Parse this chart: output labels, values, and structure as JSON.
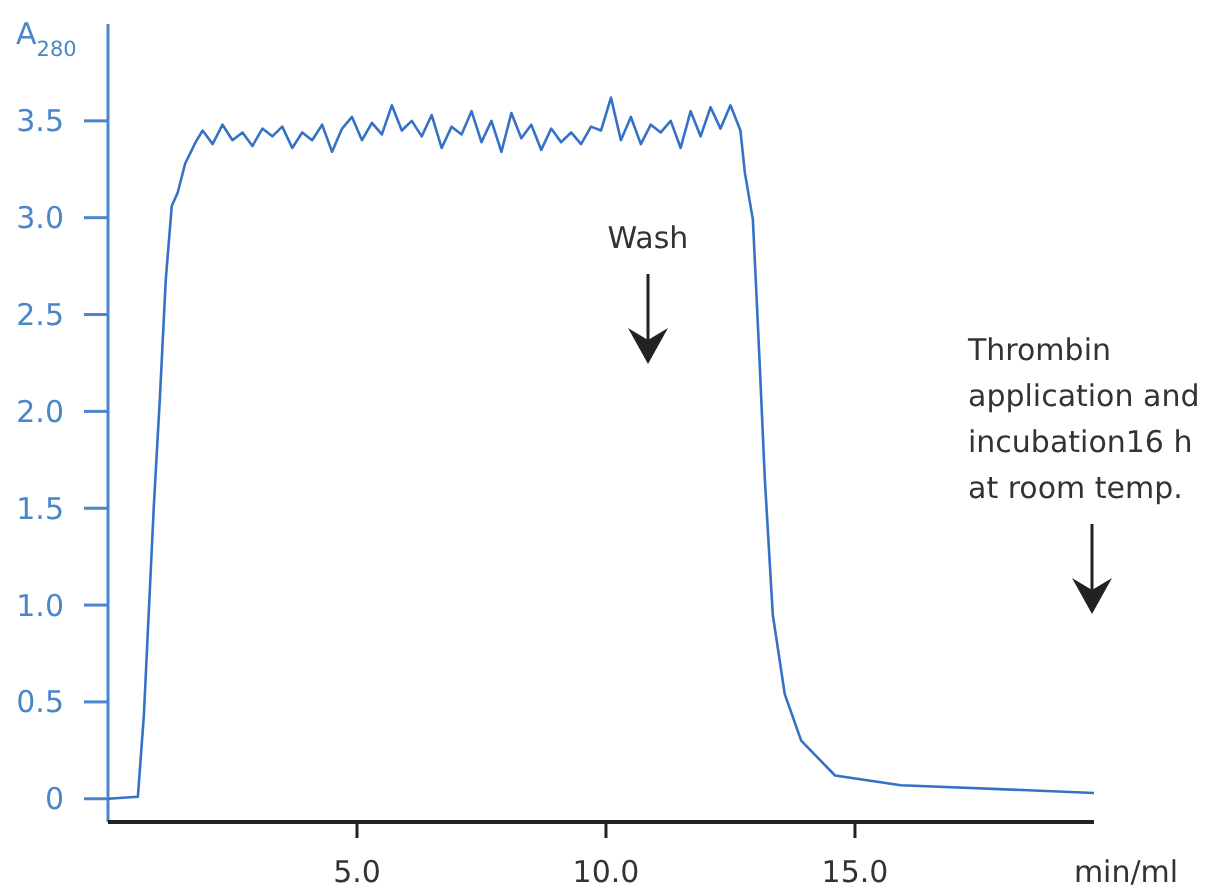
{
  "chart_data": {
    "type": "line",
    "ylabel": "A$_{280}$",
    "xlabel": "min/ml",
    "xlim": [
      0,
      19.8
    ],
    "ylim": [
      -0.12,
      4.0
    ],
    "xticks": [
      {
        "value": 5,
        "label": "5.0"
      },
      {
        "value": 10,
        "label": "10.0"
      },
      {
        "value": 15,
        "label": "15.0"
      }
    ],
    "yticks": [
      0,
      0.5,
      {
        "value": 1,
        "label": "1.0"
      },
      1.5,
      {
        "value": 2,
        "label": "2.0"
      },
      2.5,
      {
        "value": 3,
        "label": "3.0"
      },
      3.5
    ],
    "grid": false,
    "marker": "none",
    "line_style": "solid",
    "series": [
      {
        "color": "#3572c6",
        "x": [
          0,
          0.6,
          0.72,
          0.92,
          1.04,
          1.16,
          1.28,
          1.4,
          1.55,
          1.76,
          1.9,
          2.1,
          2.3,
          2.5,
          2.7,
          2.9,
          3.1,
          3.3,
          3.5,
          3.7,
          3.9,
          4.1,
          4.3,
          4.5,
          4.7,
          4.9,
          5.1,
          5.3,
          5.5,
          5.7,
          5.9,
          6.1,
          6.3,
          6.5,
          6.7,
          6.9,
          7.1,
          7.3,
          7.5,
          7.7,
          7.9,
          8.1,
          8.3,
          8.5,
          8.7,
          8.9,
          9.1,
          9.3,
          9.5,
          9.7,
          9.9,
          10.1,
          10.3,
          10.5,
          10.7,
          10.9,
          11.1,
          11.3,
          11.5,
          11.7,
          11.9,
          12.1,
          12.3,
          12.5,
          12.7,
          12.79,
          12.95,
          13.07,
          13.19,
          13.35,
          13.59,
          13.92,
          14.6,
          15.92,
          19.8
        ],
        "values": [
          0,
          0.01,
          0.43,
          1.51,
          2.06,
          2.68,
          3.06,
          3.13,
          3.28,
          3.39,
          3.45,
          3.38,
          3.48,
          3.4,
          3.44,
          3.37,
          3.46,
          3.42,
          3.47,
          3.36,
          3.44,
          3.4,
          3.48,
          3.34,
          3.46,
          3.52,
          3.4,
          3.49,
          3.43,
          3.58,
          3.45,
          3.5,
          3.42,
          3.53,
          3.36,
          3.47,
          3.43,
          3.55,
          3.39,
          3.5,
          3.34,
          3.54,
          3.41,
          3.48,
          3.35,
          3.46,
          3.39,
          3.44,
          3.38,
          3.47,
          3.45,
          3.62,
          3.4,
          3.52,
          3.38,
          3.48,
          3.44,
          3.5,
          3.36,
          3.55,
          3.42,
          3.57,
          3.46,
          3.58,
          3.45,
          3.23,
          2.99,
          2.34,
          1.65,
          0.95,
          0.54,
          0.3,
          0.12,
          0.07,
          0.03
        ]
      }
    ],
    "annotations": [
      "Wash",
      "Thrombin\napplication and\nincubation16 h\nat room temp."
    ]
  }
}
